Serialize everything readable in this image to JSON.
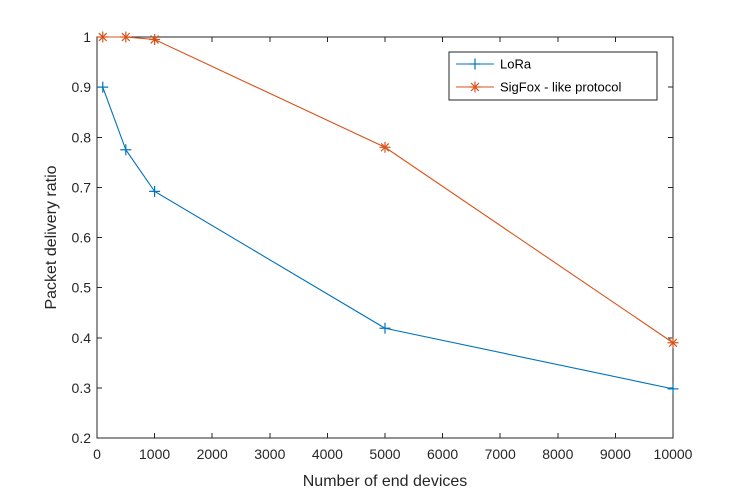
{
  "chart_data": {
    "type": "line",
    "xlabel": "Number of end devices",
    "ylabel": "Packet delivery ratio",
    "xlim": [
      0,
      10000
    ],
    "ylim": [
      0.2,
      1
    ],
    "xticks": [
      0,
      1000,
      2000,
      3000,
      4000,
      5000,
      6000,
      7000,
      8000,
      9000,
      10000
    ],
    "yticks": [
      0.2,
      0.3,
      0.4,
      0.5,
      0.6,
      0.7,
      0.8,
      0.9,
      1
    ],
    "xtick_labels": [
      "0",
      "1000",
      "2000",
      "3000",
      "4000",
      "5000",
      "6000",
      "7000",
      "8000",
      "9000",
      "10000"
    ],
    "ytick_labels": [
      "0.2",
      "0.3",
      "0.4",
      "0.5",
      "0.6",
      "0.7",
      "0.8",
      "0.9",
      "1"
    ],
    "grid": false,
    "legend_position": "top-right",
    "series": [
      {
        "name": "LoRa",
        "color": "#0072BD",
        "marker": "plus",
        "x": [
          100,
          500,
          1000,
          5000,
          10000
        ],
        "y": [
          0.9,
          0.775,
          0.692,
          0.419,
          0.298
        ]
      },
      {
        "name": "SigFox - like protocol",
        "color": "#D95319",
        "marker": "asterisk",
        "x": [
          100,
          500,
          1000,
          5000,
          10000
        ],
        "y": [
          1.0,
          1.0,
          0.995,
          0.78,
          0.39
        ]
      }
    ]
  }
}
